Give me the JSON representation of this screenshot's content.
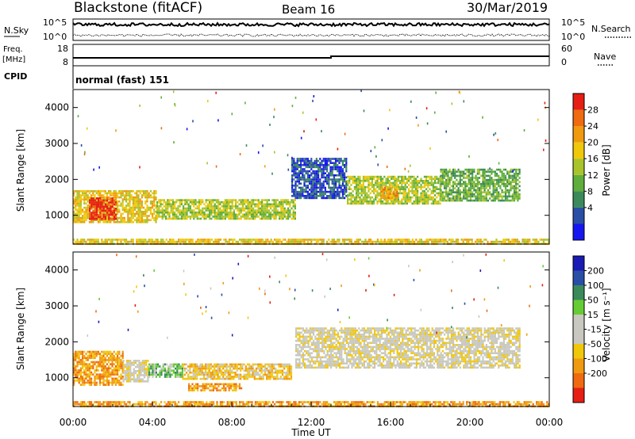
{
  "header": {
    "station": "Blackstone (fitACF)",
    "beam": "Beam 16",
    "date": "30/Mar/2019"
  },
  "strips": {
    "nsky_label": "N.Sky",
    "nsky_ticks": [
      "10^5",
      "10^0"
    ],
    "nsearch_label": "N.Search",
    "nsearch_ticks": [
      "10^5",
      "10^0"
    ],
    "freq_label_1": "Freq.",
    "freq_label_2": "[MHz]",
    "freq_ticks": [
      "18",
      "8"
    ],
    "nave_label": "Nave",
    "nave_ticks": [
      "60",
      "0"
    ],
    "cpid_label": "CPID",
    "cpid_value": "normal (fast) 151",
    "freq_step_hour": 13.0
  },
  "colors": {
    "power": [
      "#1616f0",
      "#2a4ea6",
      "#3a8a5a",
      "#5fae3c",
      "#a8c42a",
      "#f0c80a",
      "#f09a10",
      "#f06a10",
      "#e61e14"
    ],
    "velocity": [
      "#e61e14",
      "#f06a10",
      "#f09a10",
      "#f0c80a",
      "#c8c8c0",
      "#c8c8c0",
      "#66cc33",
      "#3a8a5a",
      "#2a4ea6",
      "#1a1ab4"
    ]
  },
  "chart_data": [
    {
      "type": "heatmap",
      "panel": "power",
      "ylabel": "Slant Range [km]",
      "ylim": [
        200,
        4500
      ],
      "xlim": [
        0,
        24
      ],
      "yticks": [
        "4000",
        "3000",
        "2000",
        "1000"
      ],
      "colorbar_label": "Power [dB]",
      "colorbar_ticks": [
        "28",
        "24",
        "20",
        "16",
        "12",
        "8",
        "4"
      ],
      "regions": [
        {
          "t0": 0.0,
          "t1": 4.2,
          "r0": 800,
          "r1": 1700,
          "level": 5
        },
        {
          "t0": 0.8,
          "t1": 2.2,
          "r0": 900,
          "r1": 1500,
          "level": 8
        },
        {
          "t0": 4.2,
          "t1": 11.2,
          "r0": 900,
          "r1": 1450,
          "level": 4
        },
        {
          "t0": 11.0,
          "t1": 13.8,
          "r0": 1500,
          "r1": 2600,
          "level": 1
        },
        {
          "t0": 13.8,
          "t1": 18.5,
          "r0": 1300,
          "r1": 2100,
          "level": 4
        },
        {
          "t0": 15.5,
          "t1": 16.3,
          "r0": 1500,
          "r1": 1800,
          "level": 6
        },
        {
          "t0": 18.5,
          "t1": 22.5,
          "r0": 1400,
          "r1": 2300,
          "level": 3
        },
        {
          "t0": 0.0,
          "t1": 24.0,
          "r0": 200,
          "r1": 350,
          "level": 5
        }
      ]
    },
    {
      "type": "heatmap",
      "panel": "velocity",
      "ylabel": "Slant Range [km]",
      "ylim": [
        200,
        4500
      ],
      "xlim": [
        0,
        24
      ],
      "yticks": [
        "4000",
        "3000",
        "2000",
        "1000"
      ],
      "xticks": [
        "00:00",
        "04:00",
        "08:00",
        "12:00",
        "16:00",
        "20:00",
        "00:00"
      ],
      "xlabel": "Time UT",
      "colorbar_label": "Velocity [m s⁻¹]",
      "colorbar_ticks": [
        "200",
        "100",
        "50",
        "15",
        "-15",
        "-50",
        "-100",
        "-200"
      ],
      "regions": [
        {
          "t0": 0.0,
          "t1": 2.5,
          "r0": 800,
          "r1": 1750,
          "level": 2
        },
        {
          "t0": 2.5,
          "t1": 3.8,
          "r0": 900,
          "r1": 1500,
          "level": 4
        },
        {
          "t0": 3.8,
          "t1": 5.5,
          "r0": 1000,
          "r1": 1400,
          "level": 6
        },
        {
          "t0": 5.5,
          "t1": 11.0,
          "r0": 950,
          "r1": 1400,
          "level": 3
        },
        {
          "t0": 5.8,
          "t1": 8.5,
          "r0": 650,
          "r1": 850,
          "level": 2
        },
        {
          "t0": 11.2,
          "t1": 22.5,
          "r0": 1300,
          "r1": 2400,
          "level": 4
        },
        {
          "t0": 0.0,
          "t1": 24.0,
          "r0": 200,
          "r1": 350,
          "level": 2
        }
      ]
    }
  ]
}
